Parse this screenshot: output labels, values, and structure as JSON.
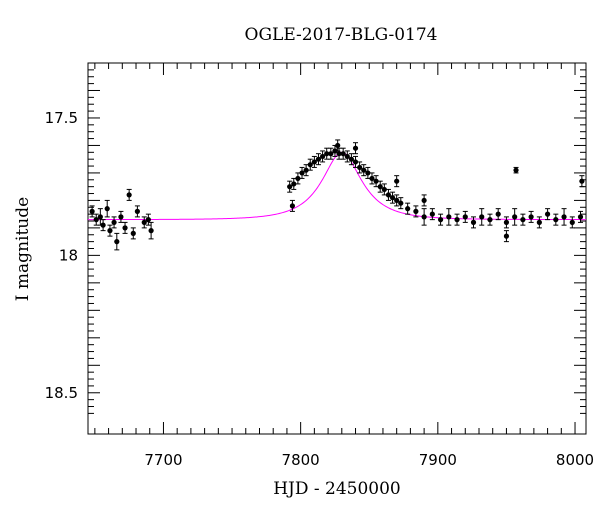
{
  "chart_data": {
    "type": "scatter",
    "title": "OGLE-2017-BLG-0174",
    "xlabel": "HJD - 2450000",
    "ylabel": "I magnitude",
    "xlim": [
      7645,
      8008
    ],
    "ylim": [
      18.65,
      17.3
    ],
    "y_inverted": true,
    "x_ticks": [
      7700,
      7800,
      7900,
      8000
    ],
    "x_tick_labels": [
      "7700",
      "7800",
      "7900",
      "8000"
    ],
    "y_ticks": [
      17.5,
      18,
      18.5
    ],
    "y_tick_labels": [
      "17.5",
      "18",
      "18.5"
    ],
    "grid": false,
    "legend": "none",
    "colors": {
      "points": "#000000",
      "model": "#ff00ff"
    },
    "model": {
      "baseline_mag": 17.87,
      "peak_mag": 17.625,
      "t0": 7830,
      "tE_days": 28
    },
    "series": [
      {
        "style": "points-with-errorbars",
        "x": [
          7648,
          7651,
          7654,
          7656,
          7659,
          7661,
          7664,
          7666,
          7669,
          7672,
          7675,
          7678,
          7681,
          7686,
          7689,
          7691,
          7792,
          7795,
          7798,
          7801,
          7804,
          7807,
          7810,
          7813,
          7816,
          7819,
          7822,
          7825,
          7828,
          7831,
          7834,
          7837,
          7840,
          7843,
          7846,
          7849,
          7852,
          7855,
          7858,
          7861,
          7864,
          7867,
          7870,
          7873,
          7878,
          7884,
          7890,
          7896,
          7902,
          7908,
          7914,
          7920,
          7926,
          7932,
          7938,
          7944,
          7950,
          7956,
          7962,
          7968,
          7974,
          7980,
          7986,
          7992,
          7998,
          8004,
          7794,
          7827,
          7840,
          7870,
          7890,
          7950,
          7957,
          8005
        ],
        "y": [
          17.84,
          17.87,
          17.86,
          17.89,
          17.83,
          17.91,
          17.88,
          17.95,
          17.86,
          17.9,
          17.78,
          17.92,
          17.84,
          17.88,
          17.87,
          17.91,
          17.75,
          17.74,
          17.72,
          17.7,
          17.69,
          17.67,
          17.66,
          17.65,
          17.64,
          17.63,
          17.63,
          17.62,
          17.63,
          17.63,
          17.64,
          17.65,
          17.66,
          17.68,
          17.69,
          17.7,
          17.72,
          17.73,
          17.75,
          17.76,
          17.78,
          17.79,
          17.8,
          17.81,
          17.83,
          17.84,
          17.86,
          17.85,
          17.87,
          17.86,
          17.87,
          17.86,
          17.88,
          17.86,
          17.87,
          17.85,
          17.88,
          17.86,
          17.87,
          17.86,
          17.88,
          17.85,
          17.87,
          17.86,
          17.88,
          17.86,
          17.82,
          17.6,
          17.61,
          17.73,
          17.8,
          17.93,
          17.69,
          17.73
        ],
        "err": [
          0.02,
          0.02,
          0.03,
          0.02,
          0.03,
          0.02,
          0.02,
          0.03,
          0.02,
          0.02,
          0.02,
          0.02,
          0.02,
          0.02,
          0.02,
          0.03,
          0.02,
          0.02,
          0.02,
          0.02,
          0.02,
          0.02,
          0.02,
          0.02,
          0.02,
          0.02,
          0.02,
          0.02,
          0.02,
          0.02,
          0.02,
          0.02,
          0.02,
          0.02,
          0.02,
          0.02,
          0.02,
          0.02,
          0.02,
          0.02,
          0.02,
          0.02,
          0.02,
          0.02,
          0.02,
          0.02,
          0.03,
          0.02,
          0.02,
          0.03,
          0.02,
          0.02,
          0.02,
          0.03,
          0.02,
          0.02,
          0.02,
          0.03,
          0.02,
          0.02,
          0.02,
          0.02,
          0.02,
          0.03,
          0.02,
          0.02,
          0.02,
          0.02,
          0.02,
          0.02,
          0.02,
          0.02,
          0.01,
          0.02
        ]
      }
    ]
  }
}
